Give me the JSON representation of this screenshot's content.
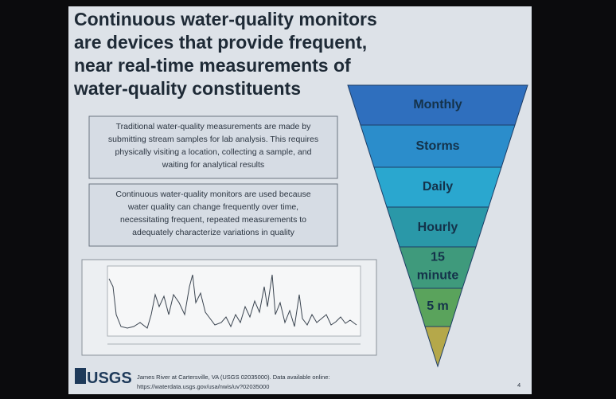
{
  "slide": {
    "title": [
      "Continuous water-quality monitors",
      "are devices that provide frequent,",
      "near real-time measurements of",
      "water-quality constituents"
    ],
    "boxes": [
      [
        "Traditional water-quality measurements are made by",
        "submitting stream samples for lab analysis. This requires",
        "physically visiting a location, collecting a sample, and",
        "waiting for analytical results"
      ],
      [
        "Continuous water-quality monitors are used because",
        "water quality can change frequently over time,",
        "necessitating frequent, repeated measurements to",
        "adequately characterize variations in quality"
      ]
    ],
    "pyramid": [
      [
        "Monthly"
      ],
      [
        "Storms"
      ],
      [
        "Daily"
      ],
      [
        "Hourly"
      ],
      [
        "15",
        "minute"
      ],
      [
        "5 m"
      ]
    ],
    "footer": {
      "logo": "USGS",
      "lines": [
        "James River at Cartersville, VA (USGS 02035000). Data available online:",
        "https://waterdata.usgs.gov/usa/nwis/uv?02035000"
      ],
      "page": "4"
    }
  }
}
